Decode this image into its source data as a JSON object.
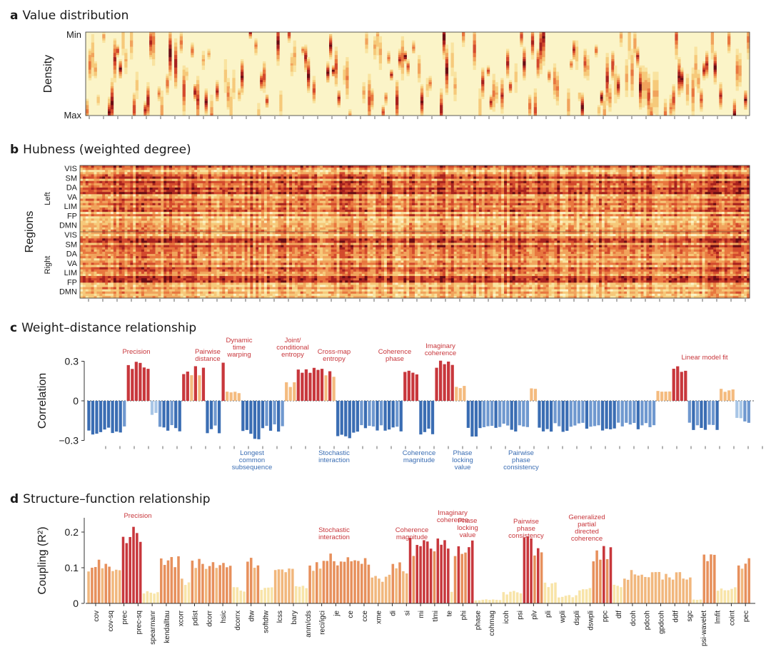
{
  "panels": {
    "a": {
      "letter": "a",
      "title": "Value distribution",
      "ylabel": "Density",
      "ytick_top": "Min",
      "ytick_bottom": "Max"
    },
    "b": {
      "letter": "b",
      "title": "Hubness (weighted degree)",
      "ylabel": "Regions",
      "hemi_left": "Left",
      "hemi_right": "Right",
      "networks_left": [
        "VIS",
        "SM",
        "DA",
        "VA",
        "LIM",
        "FP",
        "DMN"
      ],
      "networks_right": [
        "VIS",
        "SM",
        "DA",
        "VA",
        "LIM",
        "FP",
        "DMN"
      ]
    },
    "c": {
      "letter": "c",
      "title": "Weight–distance relationship",
      "ylabel": "Correlation",
      "yticks": [
        "0.3",
        "0",
        "−0.3"
      ],
      "pos_annotations": [
        [
          "Precision"
        ],
        [
          "Pairwise",
          "distance"
        ],
        [
          "Dynamic",
          "time",
          "warping"
        ],
        [
          "Joint/",
          "conditional",
          "entropy"
        ],
        [
          "Cross-map",
          "entropy"
        ],
        [
          "Coherence",
          "phase"
        ],
        [
          "Imaginary",
          "coherence"
        ],
        [
          "Linear model fit"
        ]
      ],
      "neg_annotations": [
        [
          "Longest",
          "common",
          "subsequence"
        ],
        [
          "Stochastic",
          "interaction"
        ],
        [
          "Coherence",
          "magnitude"
        ],
        [
          "Phase",
          "locking",
          "value"
        ],
        [
          "Pairwise",
          "phase",
          "consistency"
        ]
      ]
    },
    "d": {
      "letter": "d",
      "title": "Structure–function relationship",
      "ylabel": "Coupling (R²)",
      "yticks": [
        "0.2",
        "0.1",
        "0"
      ],
      "annotations": [
        [
          "Precision"
        ],
        [
          "Stochastic",
          "interaction"
        ],
        [
          "Coherence",
          "magnitude"
        ],
        [
          "Imaginary",
          "coherence"
        ],
        [
          "Phase",
          "locking",
          "value"
        ],
        [
          "Pairwise",
          "phase",
          "consistency"
        ],
        [
          "Generalized",
          "partial",
          "directed",
          "coherence"
        ]
      ]
    }
  },
  "chart_data": [
    {
      "type": "heatmap",
      "panel": "a",
      "title": "Value distribution",
      "ylabel": "Density",
      "y_range": [
        "Min",
        "Max"
      ],
      "n_columns": 240
    },
    {
      "type": "heatmap",
      "panel": "b",
      "title": "Hubness (weighted degree)",
      "ylabel": "Regions",
      "n_columns": 240,
      "n_rows": 60
    },
    {
      "type": "bar",
      "panel": "c",
      "title": "Weight–distance relationship",
      "ylabel": "Correlation",
      "ylim": [
        -0.3,
        0.3
      ],
      "groups": [
        {
          "n": 10,
          "v": -0.22
        },
        {
          "n": 6,
          "v": 0.26
        },
        {
          "n": 2,
          "v": -0.1
        },
        {
          "n": 6,
          "v": -0.21
        },
        {
          "n": 6,
          "v": 0.23
        },
        {
          "n": 4,
          "v": -0.21
        },
        {
          "n": 1,
          "v": 0.26
        },
        {
          "n": 4,
          "v": 0.07
        },
        {
          "n": 5,
          "v": -0.25
        },
        {
          "n": 6,
          "v": -0.2
        },
        {
          "n": 3,
          "v": 0.12
        },
        {
          "n": 5,
          "v": 0.22
        },
        {
          "n": 5,
          "v": 0.22
        },
        {
          "n": 5,
          "v": -0.25
        },
        {
          "n": 12,
          "v": -0.2
        },
        {
          "n": 4,
          "v": 0.24
        },
        {
          "n": 4,
          "v": -0.25
        },
        {
          "n": 5,
          "v": 0.26
        },
        {
          "n": 3,
          "v": 0.1
        },
        {
          "n": 5,
          "v": -0.24
        },
        {
          "n": 6,
          "v": -0.18
        },
        {
          "n": 5,
          "v": -0.22
        },
        {
          "n": 2,
          "v": 0.1
        },
        {
          "n": 18,
          "v": -0.2
        },
        {
          "n": 12,
          "v": -0.2
        },
        {
          "n": 4,
          "v": 0.08
        },
        {
          "n": 4,
          "v": 0.24
        },
        {
          "n": 8,
          "v": -0.2
        },
        {
          "n": 4,
          "v": 0.08
        },
        {
          "n": 4,
          "v": -0.15
        }
      ]
    },
    {
      "type": "bar",
      "panel": "d",
      "title": "Structure–function relationship",
      "ylabel": "Coupling (R²)",
      "ylim": [
        0,
        0.25
      ],
      "categories": [
        "cov",
        "cov-sq",
        "prec",
        "prec-sq",
        "spearmanr",
        "kendalltau",
        "xcorr",
        "pdist",
        "dcorr",
        "hsic",
        "dcorrx",
        "dtw",
        "softdtw",
        "lcss",
        "bary",
        "anm/cds",
        "reci/igci",
        "je",
        "ce",
        "cce",
        "xme",
        "di",
        "si",
        "mi",
        "tlmi",
        "te",
        "phi",
        "phase",
        "cohmag",
        "icoh",
        "psi",
        "plv",
        "pli",
        "wpli",
        "dspli",
        "dswpli",
        "ppc",
        "dtf",
        "dcoh",
        "pdcoh",
        "gpdcoh",
        "ddtf",
        "sgc",
        "psi-wavelet",
        "lmfit",
        "coint",
        "pec"
      ],
      "groups": [
        {
          "n": 10,
          "v": 0.105
        },
        {
          "n": 6,
          "v": 0.19
        },
        {
          "n": 5,
          "v": 0.03
        },
        {
          "n": 6,
          "v": 0.115
        },
        {
          "n": 3,
          "v": 0.06
        },
        {
          "n": 8,
          "v": 0.11
        },
        {
          "n": 4,
          "v": 0.1
        },
        {
          "n": 4,
          "v": 0.04
        },
        {
          "n": 4,
          "v": 0.115
        },
        {
          "n": 4,
          "v": 0.04
        },
        {
          "n": 6,
          "v": 0.1
        },
        {
          "n": 4,
          "v": 0.05
        },
        {
          "n": 4,
          "v": 0.11
        },
        {
          "n": 8,
          "v": 0.12
        },
        {
          "n": 6,
          "v": 0.12
        },
        {
          "n": 6,
          "v": 0.07
        },
        {
          "n": 5,
          "v": 0.1
        },
        {
          "n": 12,
          "v": 0.16
        },
        {
          "n": 1,
          "v": 0.03
        },
        {
          "n": 6,
          "v": 0.16
        },
        {
          "n": 8,
          "v": 0.01
        },
        {
          "n": 6,
          "v": 0.03
        },
        {
          "n": 6,
          "v": 0.16
        },
        {
          "n": 4,
          "v": 0.05
        },
        {
          "n": 6,
          "v": 0.02
        },
        {
          "n": 4,
          "v": 0.04
        },
        {
          "n": 6,
          "v": 0.14
        },
        {
          "n": 3,
          "v": 0.05
        },
        {
          "n": 20,
          "v": 0.08
        },
        {
          "n": 3,
          "v": 0.01
        },
        {
          "n": 4,
          "v": 0.12
        },
        {
          "n": 6,
          "v": 0.04
        },
        {
          "n": 4,
          "v": 0.11
        }
      ]
    }
  ]
}
